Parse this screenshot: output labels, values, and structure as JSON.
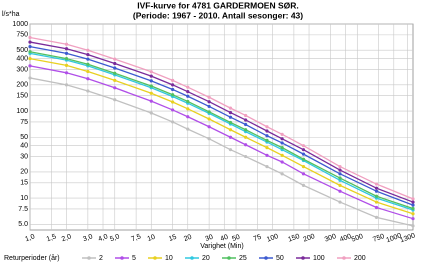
{
  "chart_data": {
    "type": "line",
    "title": "IVF-kurve for 4781 GARDERMOEN SØR.",
    "subtitle": "(Periode: 1967 - 2010. Antall sesonger: 43)",
    "y_label": "l/s*ha",
    "x_label": "Varighet (Min)",
    "legend_title": "Returperioder (år)",
    "log_x": true,
    "log_y": true,
    "grid": true,
    "x": [
      1,
      2,
      3,
      5,
      10,
      15,
      20,
      30,
      45,
      60,
      90,
      120,
      180,
      360,
      720,
      1440
    ],
    "xlim": [
      1,
      1440
    ],
    "xticks": [
      {
        "value": 1,
        "label": "1,0"
      },
      {
        "value": 1.5,
        "label": "1,5"
      },
      {
        "value": 2,
        "label": "2,0"
      },
      {
        "value": 3,
        "label": "3,0"
      },
      {
        "value": 4,
        "label": "4,0"
      },
      {
        "value": 5,
        "label": "5,0"
      },
      {
        "value": 7.5,
        "label": "7,5"
      },
      10,
      15,
      20,
      30,
      40,
      50,
      75,
      100,
      150,
      200,
      300,
      400,
      500,
      750,
      1000,
      1300
    ],
    "ylim": [
      4.3,
      1000
    ],
    "yticks": [
      {
        "value": 5,
        "label": "5.0"
      },
      7.5,
      10,
      15,
      20,
      30,
      40,
      50,
      75,
      100,
      150,
      200,
      300,
      400,
      500,
      750,
      1000
    ],
    "series": [
      {
        "name": "2",
        "color": "#c0c0c0",
        "values": [
          240,
          200,
          170,
          135,
          95,
          75,
          62,
          48,
          36,
          30,
          23,
          19,
          14,
          9,
          6,
          4.8
        ]
      },
      {
        "name": "5",
        "color": "#b04ee8",
        "values": [
          330,
          275,
          235,
          185,
          130,
          103,
          86,
          66,
          50,
          41,
          31,
          26,
          19,
          12,
          7.8,
          5.8
        ]
      },
      {
        "name": "10",
        "color": "#e8d020",
        "values": [
          400,
          335,
          285,
          225,
          160,
          127,
          106,
          81,
          61,
          50,
          38,
          31,
          23,
          14,
          9,
          6.6
        ]
      },
      {
        "name": "20",
        "color": "#30c8e0",
        "values": [
          460,
          385,
          330,
          260,
          185,
          147,
          123,
          94,
          71,
          58,
          44,
          36,
          27,
          16,
          10,
          7.3
        ]
      },
      {
        "name": "25",
        "color": "#50c060",
        "values": [
          480,
          400,
          345,
          272,
          194,
          154,
          129,
          98,
          74,
          61,
          46,
          38,
          28,
          17,
          10.5,
          7.6
        ]
      },
      {
        "name": "50",
        "color": "#3c5ad0",
        "values": [
          550,
          460,
          395,
          312,
          222,
          177,
          148,
          113,
          85,
          70,
          52,
          43,
          32,
          19,
          12,
          8.3
        ]
      },
      {
        "name": "100",
        "color": "#7a2a9a",
        "values": [
          620,
          520,
          445,
          352,
          252,
          200,
          167,
          128,
          96,
          79,
          59,
          48,
          36,
          21,
          13,
          9
        ]
      },
      {
        "name": "200",
        "color": "#f0a0c0",
        "values": [
          700,
          585,
          500,
          395,
          283,
          225,
          188,
          144,
          108,
          89,
          66,
          54,
          40,
          23,
          14.5,
          9.8
        ]
      }
    ]
  }
}
